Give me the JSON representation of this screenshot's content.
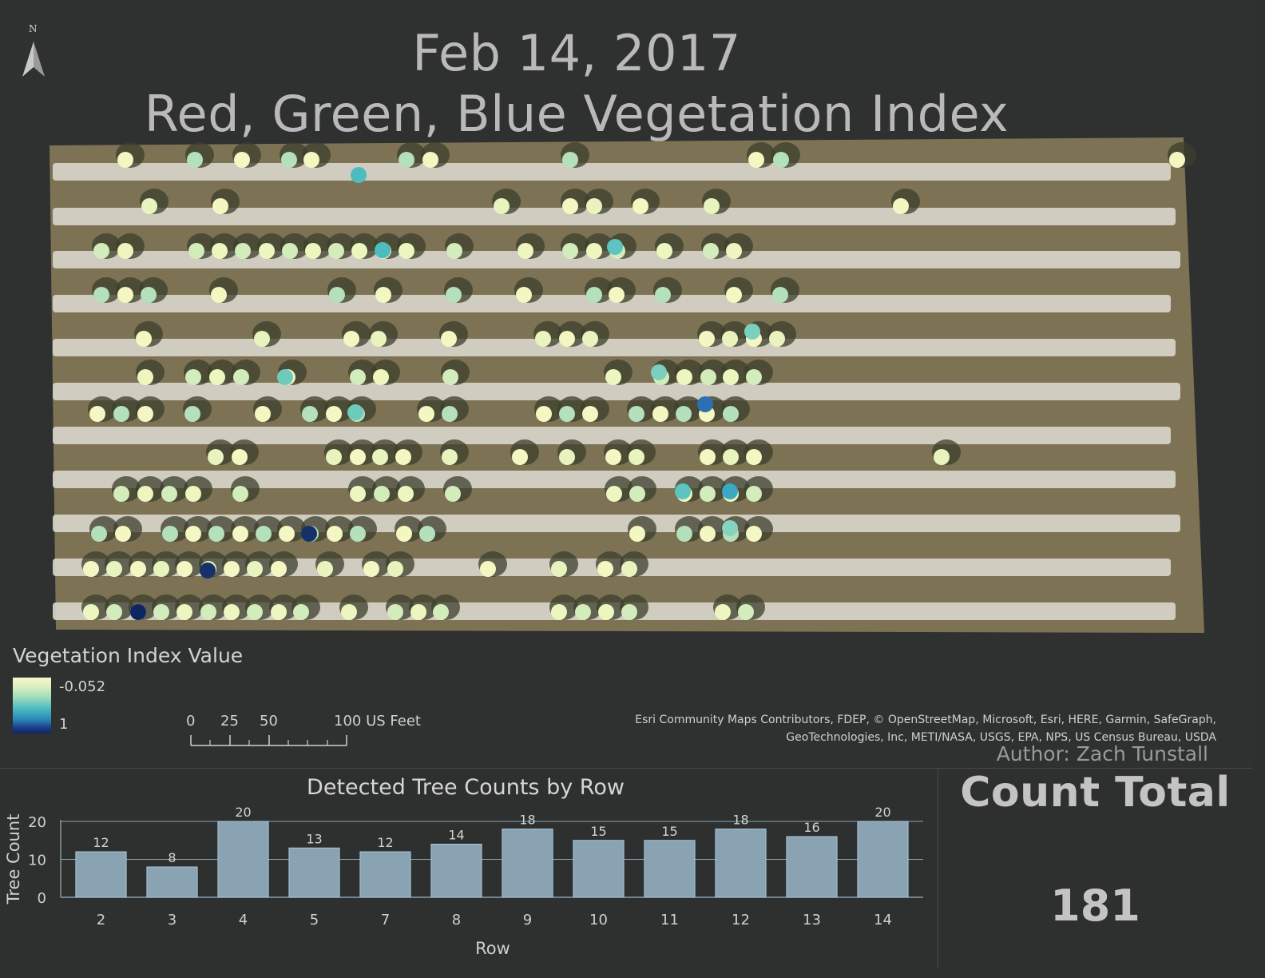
{
  "map": {
    "title_date": "Feb 14, 2017",
    "title_index": "Red, Green, Blue Vegetation Index",
    "north_label": "N",
    "legend": {
      "title": "Vegetation Index Value",
      "high_label": "-0.052",
      "low_label": "1"
    },
    "scalebar": {
      "labels": [
        "0",
        "25",
        "50",
        "100 US Feet"
      ]
    },
    "credits": {
      "line1": "Esri Community Maps Contributors, FDEP, © OpenStreetMap, Microsoft, Esri, HERE, Garmin, SafeGraph,",
      "line2": "GeoTechnologies, Inc, METI/NASA, USGS, EPA, NPS, US Census Bureau, USDA"
    },
    "author": "Author: Zach Tunstall",
    "colors": {
      "background": "#2e2f2f",
      "ground": "#7d7354",
      "bed": "#d9d6cc",
      "index_low": "#f7f8c7",
      "index_mid": "#4cbcc0",
      "index_high": "#0f2560"
    }
  },
  "chart_data": {
    "type": "bar",
    "title": "Detected Tree Counts by Row",
    "xlabel": "Row",
    "ylabel": "Tree Count",
    "categories": [
      "2",
      "3",
      "4",
      "5",
      "7",
      "8",
      "9",
      "10",
      "11",
      "12",
      "13",
      "14"
    ],
    "values": [
      12,
      8,
      20,
      13,
      12,
      14,
      18,
      15,
      15,
      18,
      16,
      20
    ],
    "ylim": [
      0,
      20
    ],
    "yticks": [
      0,
      10,
      20
    ],
    "grid": true,
    "bar_color": "#8aa3b3",
    "bar_edge_color": "#a9c7da"
  },
  "count_total": {
    "label": "Count Total",
    "value": "181"
  }
}
